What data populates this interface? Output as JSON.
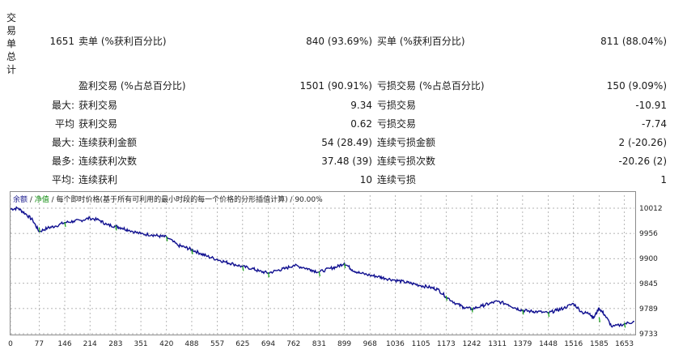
{
  "side_label": [
    "交",
    "易",
    "单",
    "总",
    "计"
  ],
  "stats": {
    "total_trades": "1651",
    "short_label": "卖单 (%获利百分比)",
    "short_value": "840 (93.69%)",
    "long_label": "买单 (%获利百分比)",
    "long_value": "811 (88.04%)",
    "profit_trades_label": "盈利交易 (%占总百分比)",
    "profit_trades_value": "1501 (90.91%)",
    "loss_trades_label": "亏损交易 (%占总百分比)",
    "loss_trades_value": "150 (9.09%)",
    "rows": [
      {
        "prefix": "最大:",
        "left_label": "获利交易",
        "left_value": "9.34",
        "right_label": "亏损交易",
        "right_value": "-10.91"
      },
      {
        "prefix": "平均",
        "left_label": "获利交易",
        "left_value": "0.62",
        "right_label": "亏损交易",
        "right_value": "-7.74"
      },
      {
        "prefix": "最大:",
        "left_label": "连续获利金额",
        "left_value": "54 (28.49)",
        "right_label": "连续亏损金额",
        "right_value": "2 (-20.26)"
      },
      {
        "prefix": "最多:",
        "left_label": "连续获利次数",
        "left_value": "37.48 (39)",
        "right_label": "连续亏损次数",
        "right_value": "-20.26 (2)"
      },
      {
        "prefix": "平均:",
        "left_label": "连续获利",
        "left_value": "10",
        "right_label": "连续亏损",
        "right_value": "1"
      }
    ]
  },
  "legend": {
    "balance": "余额",
    "sep1": " / ",
    "equity": "净值",
    "rest": " / 每个即时价格(基于所有可利用的最小时段的每一个价格的分形插值计算) / 90.00%"
  },
  "colors": {
    "balance": "#101090",
    "equity": "#12a012",
    "grid": "#9a9a9a"
  },
  "chart_data": {
    "type": "line",
    "x_ticks": [
      "0",
      "77",
      "146",
      "214",
      "283",
      "351",
      "420",
      "488",
      "557",
      "625",
      "694",
      "762",
      "831",
      "899",
      "968",
      "1036",
      "1105",
      "1173",
      "1242",
      "1311",
      "1379",
      "1448",
      "1516",
      "1585",
      "1653"
    ],
    "y_ticks": [
      "10012",
      "9956",
      "9900",
      "9845",
      "9789",
      "9733"
    ],
    "ylim": [
      9733,
      10012
    ],
    "xlim": [
      0,
      1680
    ],
    "series": [
      {
        "key": "balance",
        "x": [
          0,
          20,
          40,
          60,
          77,
          100,
          120,
          146,
          170,
          190,
          214,
          240,
          260,
          283,
          300,
          320,
          351,
          380,
          400,
          420,
          450,
          470,
          488,
          510,
          530,
          557,
          580,
          600,
          625,
          650,
          670,
          694,
          720,
          740,
          762,
          790,
          810,
          831,
          860,
          880,
          899,
          920,
          940,
          968,
          990,
          1010,
          1036,
          1060,
          1080,
          1105,
          1130,
          1150,
          1173,
          1200,
          1220,
          1242,
          1270,
          1290,
          1311,
          1340,
          1360,
          1379,
          1400,
          1420,
          1448,
          1470,
          1490,
          1516,
          1540,
          1560,
          1570,
          1585,
          1600,
          1620,
          1653,
          1680
        ],
        "y": [
          10010,
          10012,
          10000,
          9985,
          9960,
          9968,
          9972,
          9980,
          9983,
          9985,
          9990,
          9985,
          9975,
          9972,
          9968,
          9963,
          9955,
          9953,
          9950,
          9948,
          9930,
          9925,
          9920,
          9912,
          9905,
          9898,
          9892,
          9888,
          9882,
          9878,
          9872,
          9868,
          9874,
          9878,
          9885,
          9880,
          9875,
          9870,
          9878,
          9882,
          9890,
          9875,
          9868,
          9863,
          9860,
          9856,
          9852,
          9848,
          9845,
          9840,
          9836,
          9832,
          9815,
          9800,
          9792,
          9788,
          9795,
          9800,
          9805,
          9798,
          9790,
          9785,
          9783,
          9782,
          9779,
          9785,
          9790,
          9800,
          9780,
          9778,
          9768,
          9790,
          9775,
          9748,
          9755,
          9760
        ]
      },
      {
        "key": "equity",
        "x": [
          77,
          146,
          283,
          420,
          488,
          625,
          694,
          831,
          899,
          1173,
          1242,
          1379,
          1448,
          1585,
          1653
        ],
        "y": [
          9964,
          9976,
          9968,
          9944,
          9915,
          9878,
          9864,
          9866,
          9884,
          9812,
          9786,
          9781,
          9776,
          9764,
          9752
        ]
      }
    ]
  }
}
